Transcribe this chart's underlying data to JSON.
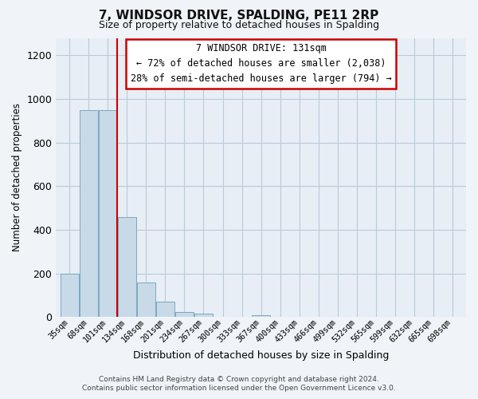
{
  "title": "7, WINDSOR DRIVE, SPALDING, PE11 2RP",
  "subtitle": "Size of property relative to detached houses in Spalding",
  "xlabel": "Distribution of detached houses by size in Spalding",
  "ylabel": "Number of detached properties",
  "bar_labels": [
    "35sqm",
    "68sqm",
    "101sqm",
    "134sqm",
    "168sqm",
    "201sqm",
    "234sqm",
    "267sqm",
    "300sqm",
    "333sqm",
    "367sqm",
    "400sqm",
    "433sqm",
    "466sqm",
    "499sqm",
    "532sqm",
    "565sqm",
    "599sqm",
    "632sqm",
    "665sqm",
    "698sqm"
  ],
  "bar_heights": [
    200,
    950,
    950,
    460,
    160,
    72,
    22,
    15,
    0,
    0,
    10,
    0,
    0,
    0,
    0,
    0,
    0,
    0,
    0,
    0,
    0
  ],
  "bar_color": "#c8d9e8",
  "bar_edge_color": "#7aaabf",
  "ylim": [
    0,
    1280
  ],
  "yticks": [
    0,
    200,
    400,
    600,
    800,
    1000,
    1200
  ],
  "property_line_color": "#cc0000",
  "annotation_line1": "7 WINDSOR DRIVE: 131sqm",
  "annotation_line2": "← 72% of detached houses are smaller (2,038)",
  "annotation_line3": "28% of semi-detached houses are larger (794) →",
  "footer_line1": "Contains HM Land Registry data © Crown copyright and database right 2024.",
  "footer_line2": "Contains public sector information licensed under the Open Government Licence v3.0.",
  "background_color": "#f0f4f8",
  "plot_background_color": "#e8eef5",
  "grid_color": "#b8cad8"
}
